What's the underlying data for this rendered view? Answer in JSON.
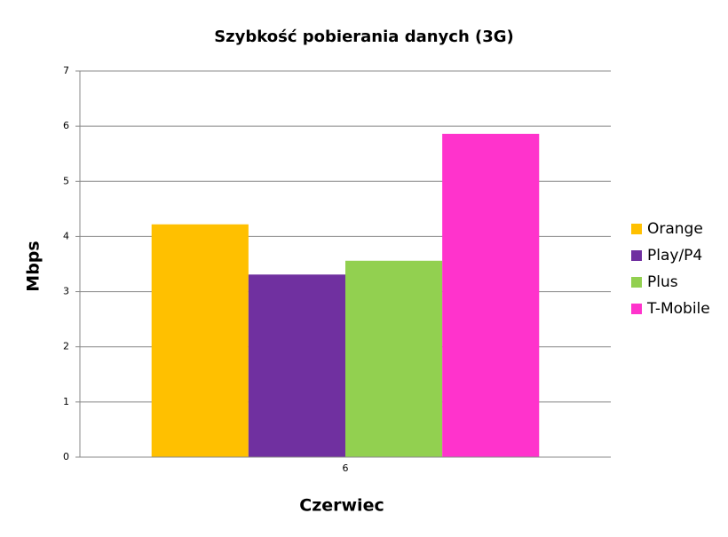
{
  "chart_data": {
    "type": "bar",
    "title": "Szybkość pobierania danych (3G)",
    "x_label": "Czerwiec",
    "y_label": "Mbps",
    "categories": [
      "6"
    ],
    "series": [
      {
        "name": "Orange",
        "color": "#ffc000",
        "values": [
          4.22
        ]
      },
      {
        "name": "Play/P4",
        "color": "#7030a0",
        "values": [
          3.31
        ]
      },
      {
        "name": "Plus",
        "color": "#92d050",
        "values": [
          3.56
        ]
      },
      {
        "name": "T-Mobile",
        "color": "#ff33cc",
        "values": [
          5.86
        ]
      }
    ],
    "ylim": [
      0,
      7
    ],
    "yticks": [
      0,
      1,
      2,
      3,
      4,
      5,
      6,
      7
    ],
    "grid": true,
    "legend": "right"
  }
}
